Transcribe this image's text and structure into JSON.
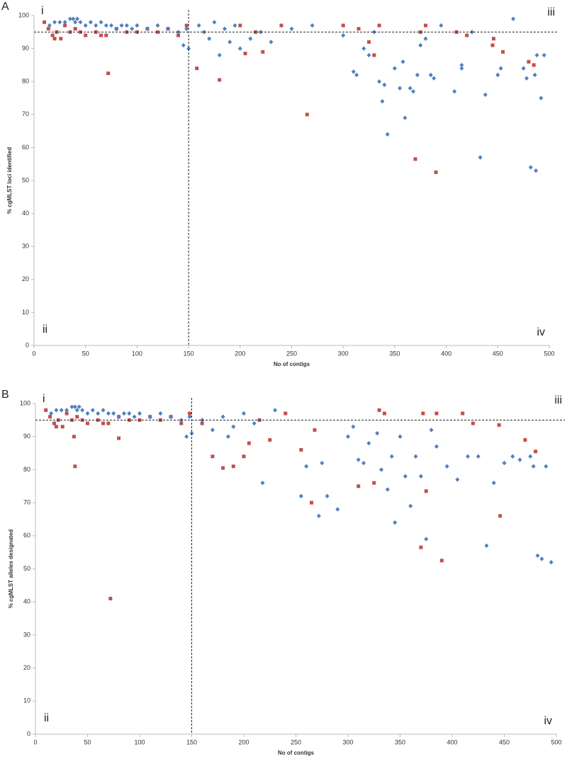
{
  "chart_data": [
    {
      "type": "scatter",
      "panel": "A",
      "xlabel": "No of contigs",
      "ylabel": "% cgMLST loci identified",
      "xlim": [
        0,
        500
      ],
      "ylim": [
        0,
        100
      ],
      "xticks": [
        0,
        50,
        100,
        150,
        200,
        250,
        300,
        350,
        400,
        450,
        500
      ],
      "yticks": [
        0,
        10,
        20,
        30,
        40,
        50,
        60,
        70,
        80,
        90,
        100
      ],
      "reference_lines": {
        "x": 150,
        "y": 95
      },
      "annotations": [
        "i",
        "ii",
        "iii",
        "iv"
      ],
      "series": [
        {
          "color": "#c0504d",
          "marker": "square",
          "x": [
            10,
            14,
            18,
            22,
            26,
            30,
            35,
            40,
            50,
            60,
            70,
            80,
            90,
            100,
            110,
            120,
            130,
            140,
            148,
            20,
            45,
            65,
            72,
            158,
            180,
            200,
            205,
            215,
            222,
            240,
            265,
            300,
            315,
            325,
            330,
            335,
            370,
            375,
            380,
            390,
            410,
            420,
            445,
            446,
            455,
            480,
            485
          ],
          "y": [
            98,
            96,
            94,
            95,
            93,
            97,
            95,
            96,
            94,
            95,
            94,
            96,
            95,
            95,
            96,
            95,
            96,
            94,
            97,
            93,
            95,
            94,
            82.5,
            84,
            80.5,
            97,
            88.5,
            95,
            89,
            97,
            70,
            97,
            96,
            92,
            88,
            97,
            56.5,
            95,
            97,
            52.5,
            95,
            94,
            91,
            93,
            89,
            86,
            85
          ]
        },
        {
          "color": "#4f81bd",
          "marker": "diamond",
          "x": [
            15,
            20,
            25,
            30,
            35,
            40,
            45,
            50,
            55,
            60,
            65,
            70,
            75,
            80,
            85,
            90,
            95,
            100,
            110,
            120,
            130,
            140,
            148,
            38,
            42,
            145,
            150,
            160,
            165,
            170,
            175,
            180,
            185,
            190,
            195,
            200,
            210,
            220,
            230,
            250,
            270,
            300,
            310,
            313,
            320,
            325,
            330,
            335,
            338,
            340,
            343,
            350,
            355,
            358,
            360,
            365,
            368,
            372,
            375,
            380,
            385,
            388,
            395,
            408,
            415,
            415,
            425,
            433,
            438,
            450,
            453,
            465,
            475,
            478,
            482,
            486,
            487,
            488,
            492,
            495
          ],
          "y": [
            97,
            98,
            98,
            98,
            99,
            98,
            98,
            97,
            98,
            97,
            98,
            97,
            97,
            96,
            97,
            97,
            96,
            97,
            96,
            97,
            96,
            95,
            96,
            99,
            99,
            91,
            90,
            97,
            95,
            93,
            98,
            88,
            96,
            92,
            97,
            90,
            93,
            95,
            92,
            96,
            97,
            94,
            83,
            82,
            90,
            88,
            95,
            80,
            74,
            79,
            64,
            84,
            78,
            86,
            69,
            78,
            77,
            82,
            91,
            93,
            82,
            81,
            97,
            77,
            85,
            84,
            95,
            57,
            76,
            82,
            84,
            99,
            84,
            81,
            54,
            82,
            53,
            88,
            75,
            88
          ]
        }
      ]
    },
    {
      "type": "scatter",
      "panel": "B",
      "xlabel": "No of contigs",
      "ylabel": "% cgMLST alleles designated",
      "xlim": [
        0,
        500
      ],
      "ylim": [
        0,
        100
      ],
      "xticks": [
        0,
        50,
        100,
        150,
        200,
        250,
        300,
        350,
        400,
        450,
        500
      ],
      "yticks": [
        0,
        10,
        20,
        30,
        40,
        50,
        60,
        70,
        80,
        90,
        100
      ],
      "reference_lines": {
        "x": 150,
        "y": 95
      },
      "annotations": [
        "i",
        "ii",
        "iii",
        "iv"
      ],
      "series": [
        {
          "color": "#c0504d",
          "marker": "square",
          "x": [
            10,
            14,
            18,
            22,
            26,
            30,
            35,
            40,
            50,
            60,
            70,
            80,
            90,
            100,
            110,
            120,
            130,
            140,
            148,
            20,
            45,
            65,
            37,
            38,
            72,
            80,
            160,
            170,
            180,
            190,
            200,
            205,
            215,
            225,
            240,
            255,
            265,
            268,
            310,
            325,
            330,
            335,
            370,
            372,
            375,
            385,
            390,
            410,
            420,
            445,
            446,
            470,
            480
          ],
          "y": [
            98,
            96,
            94,
            95,
            93,
            97,
            95,
            96,
            94,
            95,
            94,
            96,
            95,
            95,
            96,
            95,
            96,
            94,
            97,
            93,
            95,
            94,
            90,
            81,
            41,
            89.5,
            94,
            84,
            80.5,
            81,
            84,
            88,
            95,
            89,
            97,
            86,
            70,
            92,
            75,
            76,
            98,
            97,
            56.5,
            97,
            73.5,
            97,
            52.5,
            97,
            94,
            93.5,
            66,
            89,
            85.5
          ]
        },
        {
          "color": "#4f81bd",
          "marker": "diamond",
          "x": [
            15,
            20,
            25,
            30,
            35,
            40,
            45,
            50,
            55,
            60,
            65,
            70,
            75,
            80,
            85,
            90,
            95,
            100,
            110,
            120,
            130,
            140,
            148,
            38,
            42,
            145,
            150,
            160,
            170,
            180,
            185,
            190,
            200,
            210,
            218,
            230,
            255,
            260,
            272,
            275,
            280,
            290,
            300,
            305,
            310,
            315,
            320,
            328,
            332,
            338,
            342,
            345,
            350,
            355,
            360,
            365,
            370,
            375,
            380,
            385,
            395,
            405,
            415,
            425,
            433,
            440,
            450,
            458,
            465,
            475,
            478,
            482,
            486,
            490,
            495
          ],
          "y": [
            97,
            98,
            98,
            98,
            99,
            98,
            98,
            97,
            98,
            97,
            98,
            97,
            97,
            96,
            97,
            97,
            96,
            97,
            96,
            97,
            96,
            95,
            96,
            99,
            99,
            90,
            91,
            95,
            92,
            96,
            90,
            93,
            97,
            94,
            76,
            98,
            72,
            81,
            66,
            82,
            72,
            68,
            90,
            93,
            83,
            82,
            88,
            91,
            80,
            74,
            84,
            64,
            90,
            78,
            69,
            84,
            78,
            59,
            92,
            87,
            81,
            77,
            84,
            84,
            57,
            76,
            82,
            84,
            83,
            84,
            81,
            54,
            53,
            81,
            52
          ]
        }
      ]
    }
  ]
}
